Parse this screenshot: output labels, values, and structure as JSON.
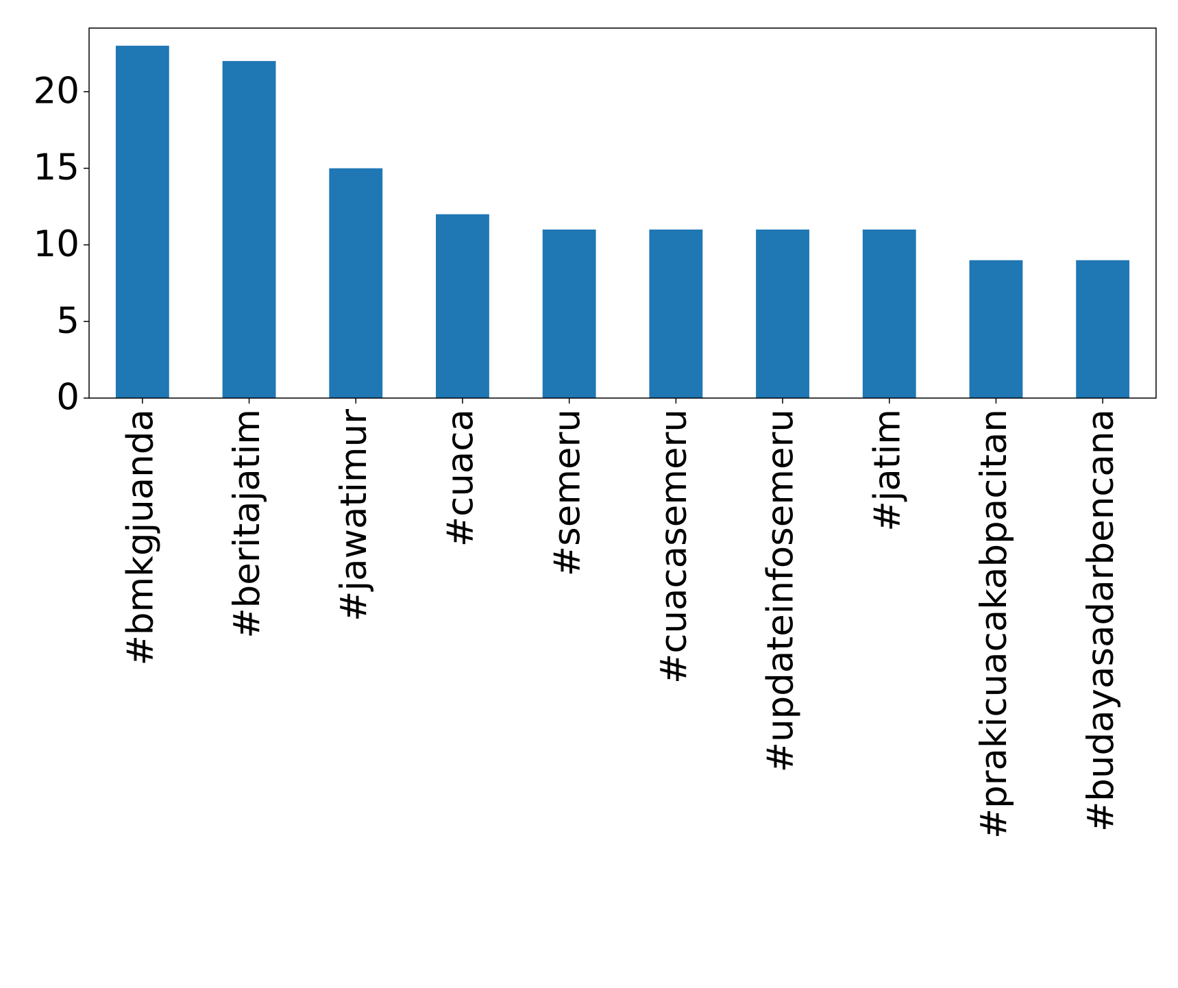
{
  "chart_data": {
    "type": "bar",
    "categories": [
      "#bmkgjuanda",
      "#beritajatim",
      "#jawatimur",
      "#cuaca",
      "#semeru",
      "#cuacasemeru",
      "#updateinfosemeru",
      "#jatim",
      "#prakicuacakabpacitan",
      "#budayasadarbencana"
    ],
    "values": [
      23,
      22,
      15,
      12,
      11,
      11,
      11,
      11,
      9,
      9
    ],
    "color": "#1f77b4",
    "ylim": [
      0,
      24.15
    ],
    "yticks": [
      0,
      5,
      10,
      15,
      20
    ],
    "grid": false
  }
}
